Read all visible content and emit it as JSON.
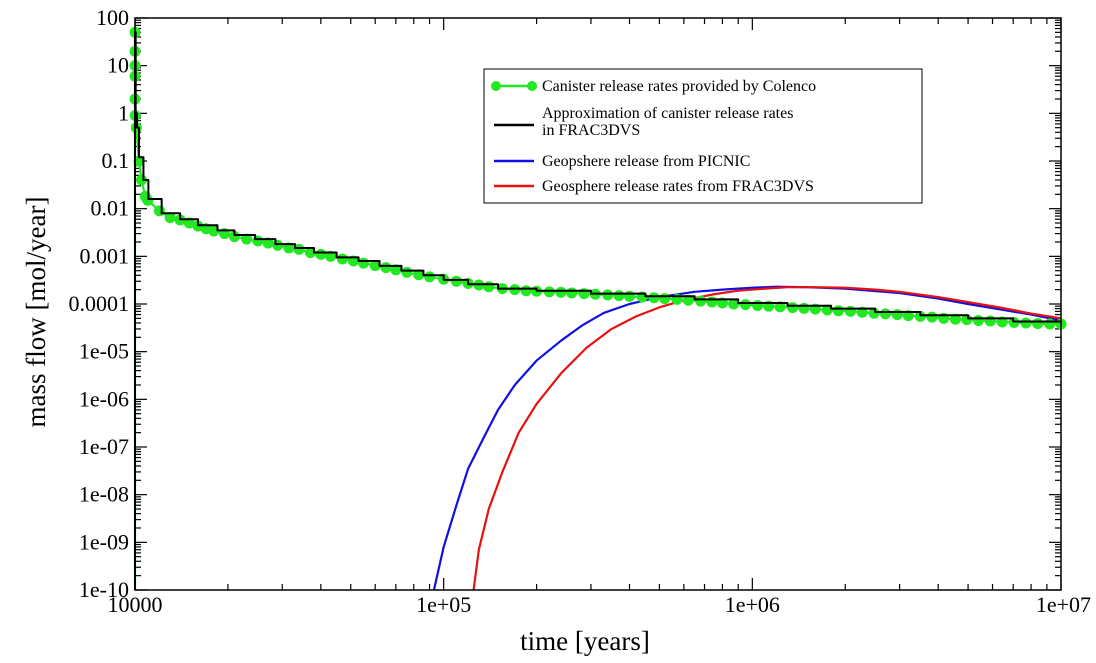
{
  "chart_data": {
    "type": "line",
    "title": "",
    "xlabel": "time [years]",
    "ylabel": "mass flow [mol/year]",
    "xscale": "log",
    "yscale": "log",
    "xlim": [
      10000,
      10000000
    ],
    "ylim": [
      1e-10,
      100
    ],
    "x_tick_labels": [
      {
        "value": 10000,
        "label": "10000"
      },
      {
        "value": 100000,
        "label": "1e+05"
      },
      {
        "value": 1000000,
        "label": "1e+06"
      },
      {
        "value": 10000000,
        "label": "1e+07"
      }
    ],
    "y_tick_labels": [
      {
        "value": 100,
        "label": "100"
      },
      {
        "value": 10,
        "label": "10"
      },
      {
        "value": 1,
        "label": "1"
      },
      {
        "value": 0.1,
        "label": "0.1"
      },
      {
        "value": 0.01,
        "label": "0.01"
      },
      {
        "value": 0.001,
        "label": "0.001"
      },
      {
        "value": 0.0001,
        "label": "0.0001"
      },
      {
        "value": 1e-05,
        "label": "1e-05"
      },
      {
        "value": 1e-06,
        "label": "1e-06"
      },
      {
        "value": 1e-07,
        "label": "1e-07"
      },
      {
        "value": 1e-08,
        "label": "1e-08"
      },
      {
        "value": 1e-09,
        "label": "1e-09"
      },
      {
        "value": 1e-10,
        "label": "1e-10"
      }
    ],
    "grid": false,
    "legend_position": "top-right",
    "series": [
      {
        "name": "Canister release rates provided by Colenco",
        "color": "#22e822",
        "marker": "circle",
        "points": [
          [
            10000,
            1e-10
          ],
          [
            10000,
            50
          ],
          [
            10000,
            20
          ],
          [
            10000,
            10
          ],
          [
            10000,
            6
          ],
          [
            10000,
            2
          ],
          [
            10010,
            0.9
          ],
          [
            10100,
            0.5
          ],
          [
            10300,
            0.1
          ],
          [
            10500,
            0.04
          ],
          [
            10800,
            0.018
          ],
          [
            11000,
            0.015
          ],
          [
            12000,
            0.009
          ],
          [
            13000,
            0.0065
          ],
          [
            14000,
            0.0058
          ],
          [
            15000,
            0.005
          ],
          [
            16000,
            0.0043
          ],
          [
            17000,
            0.0038
          ],
          [
            18000,
            0.0034
          ],
          [
            19500,
            0.003
          ],
          [
            21000,
            0.0026
          ],
          [
            23000,
            0.0023
          ],
          [
            25000,
            0.0021
          ],
          [
            27000,
            0.0019
          ],
          [
            29000,
            0.0017
          ],
          [
            31500,
            0.0015
          ],
          [
            34000,
            0.0014
          ],
          [
            37000,
            0.0012
          ],
          [
            40000,
            0.0011
          ],
          [
            43000,
            0.001
          ],
          [
            47000,
            0.00088
          ],
          [
            51000,
            0.0008
          ],
          [
            55000,
            0.00072
          ],
          [
            60000,
            0.00064
          ],
          [
            65000,
            0.00058
          ],
          [
            70000,
            0.00052
          ],
          [
            76000,
            0.00046
          ],
          [
            83000,
            0.00041
          ],
          [
            90000,
            0.00037
          ],
          [
            100000,
            0.00033
          ],
          [
            110000,
            0.0003
          ],
          [
            120000,
            0.00027
          ],
          [
            130000,
            0.00025
          ],
          [
            140000,
            0.00023
          ],
          [
            155000,
            0.00021
          ],
          [
            170000,
            0.0002
          ],
          [
            185000,
            0.00019
          ],
          [
            200000,
            0.000185
          ],
          [
            220000,
            0.00018
          ],
          [
            240000,
            0.000175
          ],
          [
            260000,
            0.00017
          ],
          [
            285000,
            0.000165
          ],
          [
            310000,
            0.00016
          ],
          [
            340000,
            0.000155
          ],
          [
            370000,
            0.00015
          ],
          [
            400000,
            0.000145
          ],
          [
            440000,
            0.00014
          ],
          [
            480000,
            0.000135
          ],
          [
            520000,
            0.00013
          ],
          [
            570000,
            0.000125
          ],
          [
            620000,
            0.00012
          ],
          [
            680000,
            0.000115
          ],
          [
            740000,
            0.00011
          ],
          [
            800000,
            0.000105
          ],
          [
            870000,
            0.0001
          ],
          [
            950000,
            9.7e-05
          ],
          [
            1040000,
            9.3e-05
          ],
          [
            1130000,
            9e-05
          ],
          [
            1230000,
            8.7e-05
          ],
          [
            1350000,
            8.4e-05
          ],
          [
            1470000,
            8.1e-05
          ],
          [
            1600000,
            7.8e-05
          ],
          [
            1750000,
            7.5e-05
          ],
          [
            1900000,
            7.2e-05
          ],
          [
            2080000,
            7e-05
          ],
          [
            2270000,
            6.7e-05
          ],
          [
            2480000,
            6.4e-05
          ],
          [
            2700000,
            6.2e-05
          ],
          [
            2950000,
            6e-05
          ],
          [
            3200000,
            5.7e-05
          ],
          [
            3500000,
            5.5e-05
          ],
          [
            3820000,
            5.3e-05
          ],
          [
            4170000,
            5e-05
          ],
          [
            4550000,
            4.8e-05
          ],
          [
            4950000,
            4.7e-05
          ],
          [
            5400000,
            4.5e-05
          ],
          [
            5900000,
            4.4e-05
          ],
          [
            6450000,
            4.2e-05
          ],
          [
            7050000,
            4.1e-05
          ],
          [
            7700000,
            4e-05
          ],
          [
            8400000,
            3.9e-05
          ],
          [
            9200000,
            3.8e-05
          ],
          [
            10000000,
            3.8e-05
          ]
        ]
      },
      {
        "name": "Approximation of canister release rates in FRAC3DVS",
        "color": "#000000",
        "step": true,
        "points": [
          [
            10000,
            1e-10
          ],
          [
            10000,
            50
          ],
          [
            10050,
            50
          ],
          [
            10050,
            1
          ],
          [
            10150,
            1
          ],
          [
            10150,
            0.5
          ],
          [
            10300,
            0.5
          ],
          [
            10300,
            0.12
          ],
          [
            10650,
            0.12
          ],
          [
            10650,
            0.04
          ],
          [
            11050,
            0.04
          ],
          [
            11050,
            0.016
          ],
          [
            12200,
            0.016
          ],
          [
            12200,
            0.008
          ],
          [
            14000,
            0.008
          ],
          [
            14000,
            0.006
          ],
          [
            16000,
            0.006
          ],
          [
            16000,
            0.0045
          ],
          [
            18500,
            0.0045
          ],
          [
            18500,
            0.0035
          ],
          [
            21000,
            0.0035
          ],
          [
            21000,
            0.0028
          ],
          [
            24500,
            0.0028
          ],
          [
            24500,
            0.0023
          ],
          [
            28500,
            0.0023
          ],
          [
            28500,
            0.0018
          ],
          [
            33000,
            0.0018
          ],
          [
            33000,
            0.0015
          ],
          [
            38000,
            0.0015
          ],
          [
            38000,
            0.0012
          ],
          [
            45000,
            0.0012
          ],
          [
            45000,
            0.00095
          ],
          [
            53000,
            0.00095
          ],
          [
            53000,
            0.0008
          ],
          [
            62000,
            0.0008
          ],
          [
            62000,
            0.00063
          ],
          [
            73000,
            0.00063
          ],
          [
            73000,
            0.0005
          ],
          [
            86000,
            0.0005
          ],
          [
            86000,
            0.0004
          ],
          [
            100000,
            0.0004
          ],
          [
            100000,
            0.00032
          ],
          [
            120000,
            0.00032
          ],
          [
            120000,
            0.00026
          ],
          [
            150000,
            0.00026
          ],
          [
            150000,
            0.00021
          ],
          [
            200000,
            0.00021
          ],
          [
            200000,
            0.00019
          ],
          [
            300000,
            0.00019
          ],
          [
            300000,
            0.000165
          ],
          [
            450000,
            0.000165
          ],
          [
            450000,
            0.000145
          ],
          [
            650000,
            0.000145
          ],
          [
            650000,
            0.000125
          ],
          [
            900000,
            0.000125
          ],
          [
            900000,
            0.000105
          ],
          [
            1300000,
            0.000105
          ],
          [
            1300000,
            9.2e-05
          ],
          [
            1800000,
            9.2e-05
          ],
          [
            1800000,
            8e-05
          ],
          [
            2500000,
            8e-05
          ],
          [
            2500000,
            6.8e-05
          ],
          [
            3500000,
            6.8e-05
          ],
          [
            3500000,
            5.8e-05
          ],
          [
            5000000,
            5.8e-05
          ],
          [
            5000000,
            5e-05
          ],
          [
            7000000,
            5e-05
          ],
          [
            7000000,
            4.3e-05
          ],
          [
            10000000,
            4.3e-05
          ]
        ]
      },
      {
        "name": "Geopshere release from PICNIC",
        "color": "#1010e0",
        "points": [
          [
            93000,
            1e-10
          ],
          [
            100000,
            8e-10
          ],
          [
            110000,
            6e-09
          ],
          [
            120000,
            3.5e-08
          ],
          [
            135000,
            1.6e-07
          ],
          [
            150000,
            6e-07
          ],
          [
            170000,
            2e-06
          ],
          [
            200000,
            6.5e-06
          ],
          [
            240000,
            1.7e-05
          ],
          [
            280000,
            3.5e-05
          ],
          [
            330000,
            6.5e-05
          ],
          [
            400000,
            0.0001
          ],
          [
            500000,
            0.00014
          ],
          [
            650000,
            0.00018
          ],
          [
            800000,
            0.0002
          ],
          [
            1000000,
            0.00022
          ],
          [
            1200000,
            0.00023
          ],
          [
            1500000,
            0.000225
          ],
          [
            2000000,
            0.00021
          ],
          [
            3000000,
            0.00017
          ],
          [
            4000000,
            0.00013
          ],
          [
            5000000,
            0.0001
          ],
          [
            6500000,
            7.5e-05
          ],
          [
            8000000,
            6e-05
          ],
          [
            10000000,
            4.5e-05
          ]
        ]
      },
      {
        "name": "Geosphere release rates from FRAC3DVS",
        "color": "#e81010",
        "points": [
          [
            125000,
            1e-10
          ],
          [
            130000,
            7e-10
          ],
          [
            140000,
            5e-09
          ],
          [
            155000,
            3e-08
          ],
          [
            175000,
            2e-07
          ],
          [
            200000,
            8e-07
          ],
          [
            240000,
            3.5e-06
          ],
          [
            290000,
            1.2e-05
          ],
          [
            350000,
            3e-05
          ],
          [
            420000,
            5.5e-05
          ],
          [
            500000,
            8.5e-05
          ],
          [
            600000,
            0.00012
          ],
          [
            750000,
            0.00016
          ],
          [
            900000,
            0.00019
          ],
          [
            1100000,
            0.00021
          ],
          [
            1300000,
            0.000225
          ],
          [
            1600000,
            0.000225
          ],
          [
            2000000,
            0.00022
          ],
          [
            2500000,
            0.0002
          ],
          [
            3000000,
            0.00018
          ],
          [
            4000000,
            0.00014
          ],
          [
            5000000,
            0.00011
          ],
          [
            6500000,
            8.2e-05
          ],
          [
            8000000,
            6.3e-05
          ],
          [
            10000000,
            5e-05
          ]
        ]
      }
    ],
    "legend": [
      {
        "lines": [
          "Canister release rates provided by Colenco"
        ]
      },
      {
        "lines": [
          "Approximation of canister release rates",
          "in FRAC3DVS"
        ]
      },
      {
        "lines": [
          "Geopshere release from PICNIC"
        ]
      },
      {
        "lines": [
          "Geosphere release rates from FRAC3DVS"
        ]
      }
    ]
  }
}
